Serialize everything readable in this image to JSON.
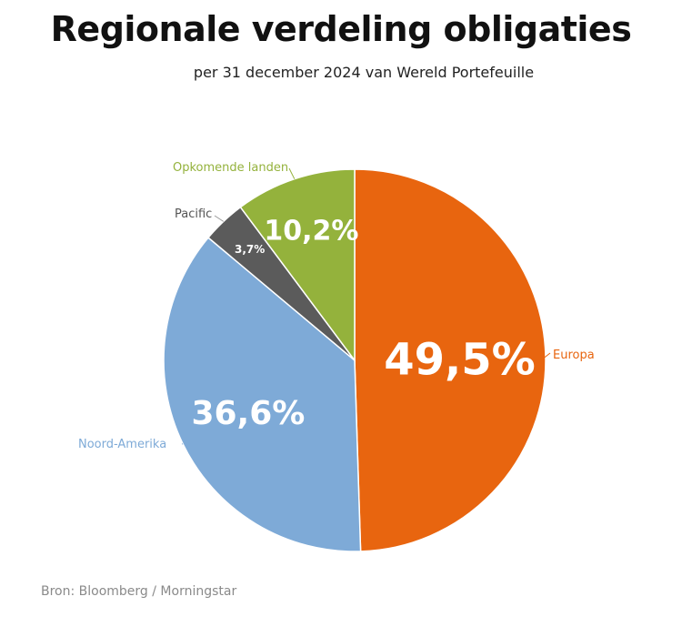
{
  "chart_data": {
    "type": "pie",
    "title": "Regionale verdeling obligaties",
    "subtitle": "per 31 december 2024 van Wereld Portefeuille",
    "slices": [
      {
        "name": "Europa",
        "value": 49.5,
        "label": "49,5%",
        "color": "#e8650f"
      },
      {
        "name": "Noord-Amerika",
        "value": 36.6,
        "label": "36,6%",
        "color": "#7eaad7"
      },
      {
        "name": "Pacific",
        "value": 3.7,
        "label": "3,7%",
        "color": "#5b5b5b"
      },
      {
        "name": "Opkomende landen",
        "value": 10.2,
        "label": "10,2%",
        "color": "#94b23c"
      }
    ],
    "start_angle_deg": 0,
    "direction": "clockwise"
  },
  "source": "Bron: Bloomberg / Morningstar",
  "colors": {
    "label_pacific": "#555555",
    "label_line": "#9a9a9a"
  }
}
